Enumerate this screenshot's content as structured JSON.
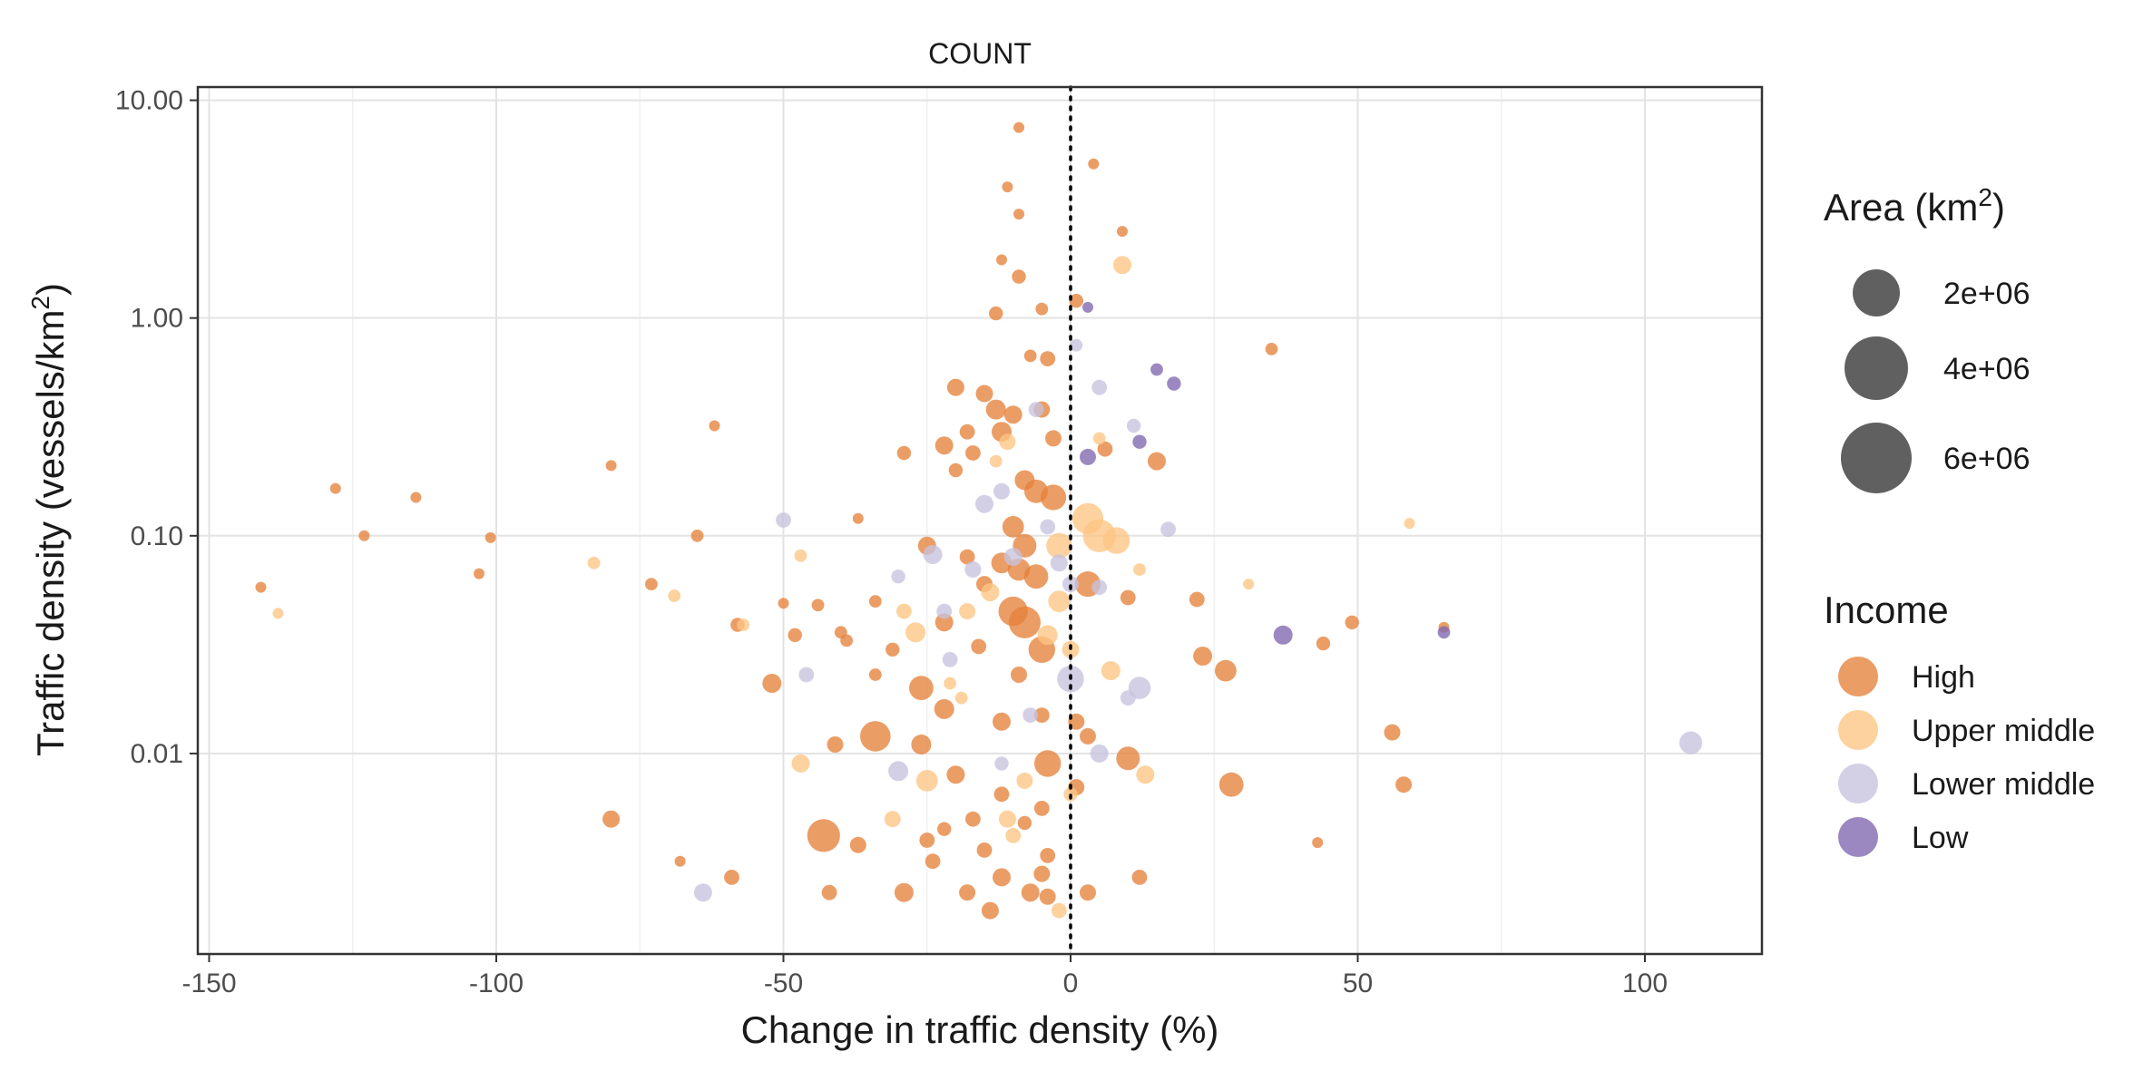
{
  "chart_data": {
    "type": "scatter",
    "title": "COUNT",
    "xlabel": "Change in traffic density (%)",
    "ylabel_main": "Traffic density (vessels/km",
    "ylabel_sup": "2",
    "ylabel_close": ")",
    "xlim": [
      -152,
      121
    ],
    "ylim": [
      0.0012,
      11.5
    ],
    "y_scale": "log10",
    "xticks": [
      -150,
      -100,
      -50,
      0,
      50,
      100
    ],
    "xtick_labels": [
      "-150",
      "-100",
      "-50",
      "0",
      "50",
      "100"
    ],
    "yticks": [
      0.01,
      0.1,
      1,
      10
    ],
    "ytick_labels": [
      "0.01",
      "0.10",
      "1.00",
      "10.00"
    ],
    "reference_line_x": 0,
    "grid": true,
    "legend_position": "right",
    "size_legend": {
      "title_main": "Area (km",
      "title_sup": "2",
      "title_close": ")",
      "entries": [
        {
          "label": "2e+06",
          "value": 2000000
        },
        {
          "label": "4e+06",
          "value": 4000000
        },
        {
          "label": "6e+06",
          "value": 6000000
        }
      ]
    },
    "color_legend": {
      "title": "Income",
      "entries": [
        {
          "key": "high",
          "label": "High",
          "color": "#E6813B"
        },
        {
          "key": "upper",
          "label": "Upper middle",
          "color": "#FDC583"
        },
        {
          "key": "lower",
          "label": "Lower middle",
          "color": "#C7C3DF"
        },
        {
          "key": "low",
          "label": "Low",
          "color": "#8066B0"
        }
      ]
    },
    "series": [
      {
        "key": "high",
        "points": [
          [
            -9,
            7.5,
            0.2
          ],
          [
            4,
            5.1,
            0.2
          ],
          [
            -11,
            4.0,
            0.2
          ],
          [
            -9,
            3.0,
            0.2
          ],
          [
            9,
            2.5,
            0.2
          ],
          [
            -12,
            1.85,
            0.2
          ],
          [
            -9,
            1.55,
            0.4
          ],
          [
            -13,
            1.05,
            0.4
          ],
          [
            -5,
            1.1,
            0.3
          ],
          [
            1,
            1.2,
            0.4
          ],
          [
            35,
            0.72,
            0.3
          ],
          [
            -7,
            0.67,
            0.3
          ],
          [
            -4,
            0.65,
            0.5
          ],
          [
            -20,
            0.48,
            0.7
          ],
          [
            -15,
            0.45,
            0.7
          ],
          [
            -13,
            0.38,
            1.0
          ],
          [
            -10,
            0.36,
            0.8
          ],
          [
            -5,
            0.38,
            0.6
          ],
          [
            -18,
            0.3,
            0.5
          ],
          [
            -12,
            0.3,
            1.0
          ],
          [
            -3,
            0.28,
            0.6
          ],
          [
            6,
            0.25,
            0.5
          ],
          [
            -62,
            0.32,
            0.2
          ],
          [
            -29,
            0.24,
            0.4
          ],
          [
            -22,
            0.26,
            0.8
          ],
          [
            -17,
            0.24,
            0.5
          ],
          [
            -20,
            0.2,
            0.4
          ],
          [
            -8,
            0.18,
            1.0
          ],
          [
            -6,
            0.16,
            1.5
          ],
          [
            -3,
            0.15,
            1.8
          ],
          [
            15,
            0.22,
            0.8
          ],
          [
            -80,
            0.21,
            0.2
          ],
          [
            -128,
            0.165,
            0.2
          ],
          [
            -114,
            0.15,
            0.2
          ],
          [
            -37,
            0.12,
            0.2
          ],
          [
            -10,
            0.11,
            1.2
          ],
          [
            -8,
            0.09,
            1.5
          ],
          [
            -65,
            0.1,
            0.3
          ],
          [
            -101,
            0.098,
            0.2
          ],
          [
            -123,
            0.1,
            0.2
          ],
          [
            -25,
            0.09,
            0.8
          ],
          [
            -18,
            0.08,
            0.5
          ],
          [
            -12,
            0.075,
            1.1
          ],
          [
            -9,
            0.07,
            1.3
          ],
          [
            -6,
            0.065,
            1.6
          ],
          [
            3,
            0.06,
            1.8
          ],
          [
            -103,
            0.067,
            0.2
          ],
          [
            -141,
            0.058,
            0.2
          ],
          [
            -73,
            0.06,
            0.3
          ],
          [
            -34,
            0.05,
            0.3
          ],
          [
            -22,
            0.04,
            0.8
          ],
          [
            -15,
            0.06,
            0.6
          ],
          [
            -10,
            0.045,
            2.5
          ],
          [
            -8,
            0.04,
            3.0
          ],
          [
            -5,
            0.03,
            2.0
          ],
          [
            -44,
            0.048,
            0.3
          ],
          [
            -50,
            0.049,
            0.2
          ],
          [
            -58,
            0.039,
            0.4
          ],
          [
            -40,
            0.036,
            0.3
          ],
          [
            -39,
            0.033,
            0.3
          ],
          [
            -48,
            0.035,
            0.4
          ],
          [
            -34,
            0.023,
            0.3
          ],
          [
            -31,
            0.03,
            0.4
          ],
          [
            -16,
            0.031,
            0.5
          ],
          [
            -9,
            0.023,
            0.6
          ],
          [
            10,
            0.052,
            0.5
          ],
          [
            22,
            0.051,
            0.5
          ],
          [
            23,
            0.028,
            0.9
          ],
          [
            27,
            0.024,
            1.2
          ],
          [
            44,
            0.032,
            0.4
          ],
          [
            49,
            0.04,
            0.4
          ],
          [
            65,
            0.038,
            0.2
          ],
          [
            -52,
            0.021,
            0.9
          ],
          [
            -26,
            0.02,
            1.6
          ],
          [
            -22,
            0.016,
            1.0
          ],
          [
            -12,
            0.014,
            0.8
          ],
          [
            -5,
            0.015,
            0.5
          ],
          [
            1,
            0.014,
            0.6
          ],
          [
            3,
            0.012,
            0.6
          ],
          [
            -34,
            0.012,
            2.7
          ],
          [
            -41,
            0.011,
            0.6
          ],
          [
            -26,
            0.011,
            1.0
          ],
          [
            -4,
            0.009,
            2.0
          ],
          [
            10,
            0.0095,
            1.5
          ],
          [
            56,
            0.0125,
            0.6
          ],
          [
            28,
            0.0072,
            1.6
          ],
          [
            58,
            0.0072,
            0.6
          ],
          [
            -20,
            0.008,
            0.8
          ],
          [
            1,
            0.007,
            0.6
          ],
          [
            -80,
            0.005,
            0.7
          ],
          [
            -43,
            0.0042,
            3.2
          ],
          [
            -37,
            0.0038,
            0.6
          ],
          [
            -25,
            0.004,
            0.5
          ],
          [
            -17,
            0.005,
            0.5
          ],
          [
            -12,
            0.0065,
            0.5
          ],
          [
            -22,
            0.0045,
            0.4
          ],
          [
            -8,
            0.0048,
            0.4
          ],
          [
            -5,
            0.0056,
            0.5
          ],
          [
            -68,
            0.0032,
            0.2
          ],
          [
            43,
            0.0039,
            0.2
          ],
          [
            -59,
            0.0027,
            0.5
          ],
          [
            -24,
            0.0032,
            0.5
          ],
          [
            -15,
            0.0036,
            0.5
          ],
          [
            -12,
            0.0027,
            0.8
          ],
          [
            -4,
            0.0034,
            0.5
          ],
          [
            -5,
            0.0028,
            0.6
          ],
          [
            12,
            0.0027,
            0.5
          ],
          [
            -42,
            0.0023,
            0.5
          ],
          [
            -29,
            0.0023,
            0.9
          ],
          [
            -18,
            0.0023,
            0.6
          ],
          [
            -14,
            0.0019,
            0.7
          ],
          [
            -7,
            0.0023,
            0.8
          ],
          [
            -4,
            0.0022,
            0.6
          ],
          [
            3,
            0.0023,
            0.6
          ]
        ]
      },
      {
        "key": "upper",
        "points": [
          [
            9,
            1.75,
            0.8
          ],
          [
            -11,
            0.27,
            0.6
          ],
          [
            -13,
            0.22,
            0.3
          ],
          [
            5,
            0.28,
            0.3
          ],
          [
            3,
            0.12,
            2.8
          ],
          [
            5,
            0.1,
            3.2
          ],
          [
            8,
            0.095,
            2.0
          ],
          [
            -2,
            0.09,
            1.8
          ],
          [
            59,
            0.114,
            0.2
          ],
          [
            -83,
            0.075,
            0.3
          ],
          [
            -47,
            0.081,
            0.3
          ],
          [
            12,
            0.07,
            0.3
          ],
          [
            31,
            0.06,
            0.2
          ],
          [
            -69,
            0.053,
            0.3
          ],
          [
            -29,
            0.045,
            0.5
          ],
          [
            -18,
            0.045,
            0.6
          ],
          [
            -14,
            0.055,
            0.8
          ],
          [
            -2,
            0.05,
            1.2
          ],
          [
            -57,
            0.039,
            0.3
          ],
          [
            -138,
            0.044,
            0.2
          ],
          [
            -27,
            0.036,
            1.0
          ],
          [
            -4,
            0.035,
            1.0
          ],
          [
            0,
            0.03,
            0.7
          ],
          [
            7,
            0.024,
            0.9
          ],
          [
            -21,
            0.021,
            0.3
          ],
          [
            -19,
            0.018,
            0.3
          ],
          [
            -47,
            0.009,
            0.8
          ],
          [
            -25,
            0.0075,
            1.2
          ],
          [
            -8,
            0.0075,
            0.6
          ],
          [
            13,
            0.008,
            0.8
          ],
          [
            -31,
            0.005,
            0.6
          ],
          [
            -11,
            0.005,
            0.7
          ],
          [
            -10,
            0.0042,
            0.5
          ],
          [
            -2,
            0.0019,
            0.5
          ],
          [
            0,
            0.0065,
            0.4
          ]
        ]
      },
      {
        "key": "lower",
        "points": [
          [
            1,
            0.75,
            0.3
          ],
          [
            5,
            0.48,
            0.5
          ],
          [
            11,
            0.32,
            0.4
          ],
          [
            -6,
            0.38,
            0.5
          ],
          [
            -15,
            0.14,
            0.8
          ],
          [
            -12,
            0.16,
            0.6
          ],
          [
            -4,
            0.11,
            0.5
          ],
          [
            17,
            0.107,
            0.5
          ],
          [
            -50,
            0.118,
            0.5
          ],
          [
            -24,
            0.082,
            0.9
          ],
          [
            -17,
            0.07,
            0.6
          ],
          [
            -10,
            0.08,
            0.8
          ],
          [
            -2,
            0.075,
            0.7
          ],
          [
            0,
            0.06,
            0.6
          ],
          [
            5,
            0.058,
            0.5
          ],
          [
            -22,
            0.045,
            0.5
          ],
          [
            -30,
            0.065,
            0.4
          ],
          [
            -21,
            0.027,
            0.5
          ],
          [
            -46,
            0.023,
            0.5
          ],
          [
            0,
            0.022,
            2.0
          ],
          [
            12,
            0.02,
            1.3
          ],
          [
            10,
            0.018,
            0.5
          ],
          [
            -7,
            0.015,
            0.5
          ],
          [
            -12,
            0.009,
            0.4
          ],
          [
            5,
            0.01,
            0.8
          ],
          [
            -30,
            0.0083,
            1.0
          ],
          [
            -64,
            0.0023,
            0.8
          ],
          [
            108,
            0.0112,
            1.4
          ]
        ]
      },
      {
        "key": "low",
        "points": [
          [
            3,
            1.12,
            0.2
          ],
          [
            15,
            0.58,
            0.3
          ],
          [
            18,
            0.5,
            0.4
          ],
          [
            12,
            0.27,
            0.4
          ],
          [
            3,
            0.23,
            0.6
          ],
          [
            37,
            0.035,
            0.9
          ],
          [
            65,
            0.036,
            0.3
          ]
        ]
      }
    ]
  }
}
